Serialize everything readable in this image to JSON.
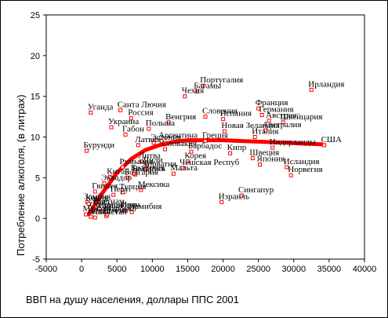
{
  "chart_data": {
    "type": "scatter",
    "xlabel": "ВВП на душу населения, доллары ППС 2001",
    "ylabel": "Потребление алкоголя, (в литрах)",
    "xlim": [
      -5000,
      40000
    ],
    "ylim": [
      -5,
      25
    ],
    "xticks": [
      "-5000",
      "0",
      "5000",
      "10000",
      "15000",
      "20000",
      "25000",
      "30000",
      "35000",
      "40000"
    ],
    "yticks": [
      "-5",
      "0",
      "5",
      "10",
      "15",
      "20",
      "25"
    ],
    "grid": false,
    "legend": "none",
    "marker": "hollow-square",
    "marker_color": "#ff0000",
    "fit_color": "#ff0000",
    "points": [
      {
        "label": "Ирландия",
        "x": 32500,
        "y": 15.8
      },
      {
        "label": "США",
        "x": 34300,
        "y": 9.0
      },
      {
        "label": "Португалия",
        "x": 17200,
        "y": 16.3
      },
      {
        "label": "Багамы",
        "x": 16300,
        "y": 15.6
      },
      {
        "label": "Чехия",
        "x": 14600,
        "y": 15.0
      },
      {
        "label": "Франция",
        "x": 25000,
        "y": 13.5
      },
      {
        "label": "Германия",
        "x": 25500,
        "y": 12.7
      },
      {
        "label": "Австрия",
        "x": 26500,
        "y": 12.0
      },
      {
        "label": "Швейцария",
        "x": 28500,
        "y": 11.8
      },
      {
        "label": "Испания",
        "x": 20000,
        "y": 12.2
      },
      {
        "label": "Словения",
        "x": 17500,
        "y": 12.5
      },
      {
        "label": "Австралия",
        "x": 26000,
        "y": 10.8
      },
      {
        "label": "Италия",
        "x": 24500,
        "y": 10.0
      },
      {
        "label": "Греция",
        "x": 17500,
        "y": 9.5
      },
      {
        "label": "Новая Зеландия",
        "x": 20200,
        "y": 10.7
      },
      {
        "label": "Нидерланды",
        "x": 27000,
        "y": 8.7
      },
      {
        "label": "Швеция",
        "x": 24200,
        "y": 7.4
      },
      {
        "label": "Япония",
        "x": 25200,
        "y": 6.6
      },
      {
        "label": "Норвегия",
        "x": 29600,
        "y": 5.3
      },
      {
        "label": "Исландия",
        "x": 29000,
        "y": 6.3
      },
      {
        "label": "Сингапур",
        "x": 22600,
        "y": 2.8
      },
      {
        "label": "Израиль",
        "x": 19800,
        "y": 2.0
      },
      {
        "label": "Барбадос",
        "x": 15500,
        "y": 8.2
      },
      {
        "label": "Корея",
        "x": 15000,
        "y": 7.0
      },
      {
        "label": "Мальта",
        "x": 13000,
        "y": 5.5
      },
      {
        "label": "Санта Лючия",
        "x": 5500,
        "y": 13.3
      },
      {
        "label": "Уганда",
        "x": 1300,
        "y": 13.0
      },
      {
        "label": "Россия",
        "x": 7000,
        "y": 12.3
      },
      {
        "label": "Украина",
        "x": 4200,
        "y": 11.2
      },
      {
        "label": "Польша",
        "x": 9500,
        "y": 11.0
      },
      {
        "label": "Венгрия",
        "x": 12300,
        "y": 11.8
      },
      {
        "label": "Эстония",
        "x": 10200,
        "y": 9.3
      },
      {
        "label": "Латвия",
        "x": 8000,
        "y": 9.0
      },
      {
        "label": "Габон",
        "x": 6200,
        "y": 10.3
      },
      {
        "label": "Аргентина",
        "x": 11300,
        "y": 9.5
      },
      {
        "label": "Бурунди",
        "x": 700,
        "y": 8.3
      },
      {
        "label": "Словакия",
        "x": 11800,
        "y": 8.5
      },
      {
        "label": "Литва",
        "x": 8500,
        "y": 7.0
      },
      {
        "label": "Хорватия",
        "x": 9000,
        "y": 6.0
      },
      {
        "label": "Румыния",
        "x": 5800,
        "y": 6.3
      },
      {
        "label": "Болгария",
        "x": 6500,
        "y": 5.0
      },
      {
        "label": "Беларусь",
        "x": 7600,
        "y": 5.4
      },
      {
        "label": "Чешская Респуб",
        "x": 14300,
        "y": 6.2
      },
      {
        "label": "Кипр",
        "x": 21000,
        "y": 8.0
      },
      {
        "label": "Эквадор",
        "x": 3200,
        "y": 4.3
      },
      {
        "label": "Гвинея",
        "x": 1900,
        "y": 3.3
      },
      {
        "label": "Мексика",
        "x": 8400,
        "y": 3.5
      },
      {
        "label": "Соломоновы",
        "x": 1600,
        "y": 1.0
      },
      {
        "label": "Намибия",
        "x": 7100,
        "y": 0.8
      },
      {
        "label": "Замбия",
        "x": 800,
        "y": 2.0
      },
      {
        "label": "Малави",
        "x": 600,
        "y": 0.5
      },
      {
        "label": "Непал",
        "x": 1300,
        "y": 0.2
      },
      {
        "label": "Кения",
        "x": 1000,
        "y": 1.8
      },
      {
        "label": "Гана",
        "x": 2000,
        "y": 1.3
      },
      {
        "label": "Индия",
        "x": 2800,
        "y": 0.9
      },
      {
        "label": "Вьетнам",
        "x": 2100,
        "y": 1.4
      },
      {
        "label": "Китай",
        "x": 4000,
        "y": 5.1
      },
      {
        "label": "Бразилия",
        "x": 7400,
        "y": 5.5
      },
      {
        "label": "Чили",
        "x": 9200,
        "y": 6.5
      },
      {
        "label": "Перу",
        "x": 4500,
        "y": 2.9
      },
      {
        "label": "Турция",
        "x": 5800,
        "y": 3.2
      },
      {
        "label": "Египет",
        "x": 3500,
        "y": 0.3
      },
      {
        "label": "Марокко",
        "x": 3600,
        "y": 0.5
      },
      {
        "label": "Иран",
        "x": 6000,
        "y": 1.0
      },
      {
        "label": "Пакистан",
        "x": 1900,
        "y": 0.1
      }
    ],
    "fit_curve": [
      {
        "x": 1000,
        "y": 0.5
      },
      {
        "x": 3000,
        "y": 3.2
      },
      {
        "x": 5000,
        "y": 5.6
      },
      {
        "x": 7000,
        "y": 7.3
      },
      {
        "x": 9000,
        "y": 8.4
      },
      {
        "x": 11000,
        "y": 9.0
      },
      {
        "x": 13000,
        "y": 9.4
      },
      {
        "x": 15000,
        "y": 9.6
      },
      {
        "x": 17000,
        "y": 9.6
      },
      {
        "x": 20000,
        "y": 9.6
      },
      {
        "x": 23000,
        "y": 9.5
      },
      {
        "x": 26000,
        "y": 9.4
      },
      {
        "x": 29000,
        "y": 9.3
      },
      {
        "x": 31000,
        "y": 9.2
      },
      {
        "x": 34000,
        "y": 9.1
      }
    ]
  }
}
